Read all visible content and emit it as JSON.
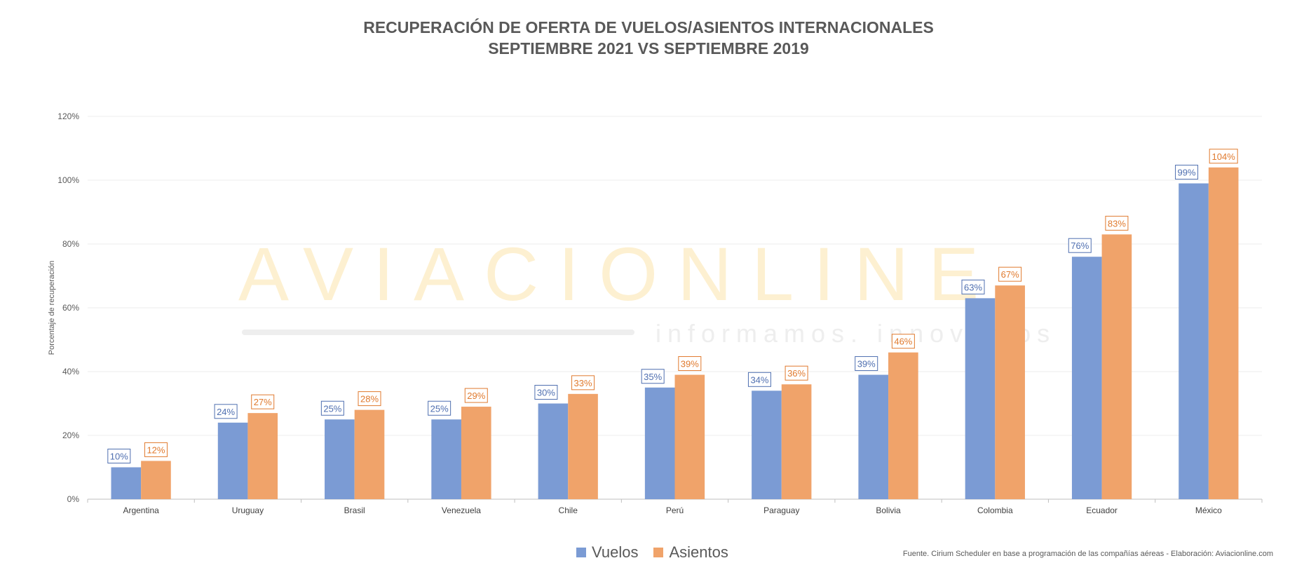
{
  "chart_data": {
    "type": "bar",
    "title": "RECUPERACIÓN DE OFERTA DE VUELOS/ASIENTOS INTERNACIONALES",
    "subtitle": "SEPTIEMBRE 2021 VS SEPTIEMBRE 2019",
    "ylabel": "Porcentaje de recuperación",
    "xlabel": "",
    "ylim": [
      0,
      120
    ],
    "yticks": [
      "0%",
      "20%",
      "40%",
      "60%",
      "80%",
      "100%",
      "120%"
    ],
    "grid": true,
    "legend_position": "bottom",
    "categories": [
      "Argentina",
      "Uruguay",
      "Brasil",
      "Venezuela",
      "Chile",
      "Perú",
      "Paraguay",
      "Bolivia",
      "Colombia",
      "Ecuador",
      "México"
    ],
    "series": [
      {
        "name": "Vuelos",
        "color": "#7b9bd4",
        "label_color": "#4f6fb0",
        "values": [
          10,
          24,
          25,
          25,
          30,
          35,
          34,
          39,
          63,
          76,
          99
        ],
        "labels": [
          "10%",
          "24%",
          "25%",
          "25%",
          "30%",
          "35%",
          "34%",
          "39%",
          "63%",
          "76%",
          "99%"
        ]
      },
      {
        "name": "Asientos",
        "color": "#f0a36a",
        "label_color": "#e07a2e",
        "values": [
          12,
          27,
          28,
          29,
          33,
          39,
          36,
          46,
          67,
          83,
          104
        ],
        "labels": [
          "12%",
          "27%",
          "28%",
          "29%",
          "33%",
          "39%",
          "36%",
          "46%",
          "67%",
          "83%",
          "104%"
        ]
      }
    ]
  },
  "watermark": {
    "brand": "AVIACIONLINE",
    "tagline": "informamos. innovamos",
    "color": "#fdecc2"
  },
  "source_note": "Fuente. Cirium Scheduler en base a programación de las compañías aéreas - Elaboración: Aviacionline.com"
}
